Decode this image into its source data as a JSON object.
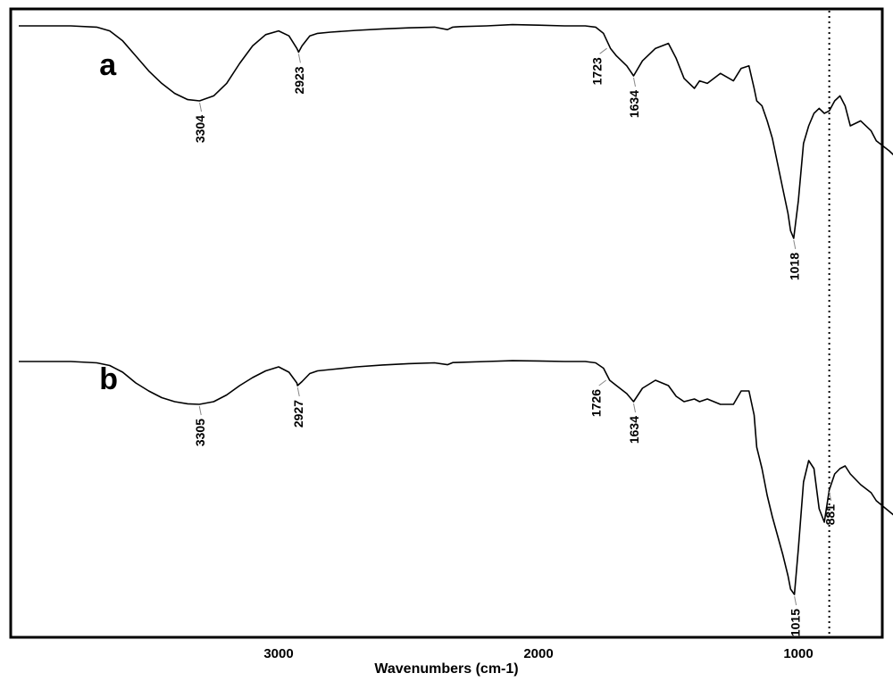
{
  "chart_data": {
    "type": "line",
    "title": "",
    "xlabel": "Wavenumbers (cm-1)",
    "ylabel": "",
    "x_ticks": [
      "3000",
      "2000",
      "1000"
    ],
    "x_range": [
      4000,
      600
    ],
    "x_reversed": true,
    "grid": false,
    "marker_line": 881,
    "series": [
      {
        "name": "a",
        "x": [
          4000,
          3900,
          3800,
          3700,
          3650,
          3600,
          3550,
          3500,
          3450,
          3400,
          3350,
          3304,
          3250,
          3200,
          3150,
          3100,
          3050,
          3000,
          2960,
          2930,
          2923,
          2910,
          2880,
          2850,
          2800,
          2700,
          2600,
          2500,
          2400,
          2350,
          2330,
          2300,
          2200,
          2100,
          2000,
          1900,
          1820,
          1780,
          1750,
          1723,
          1700,
          1660,
          1634,
          1600,
          1550,
          1500,
          1470,
          1440,
          1400,
          1380,
          1350,
          1300,
          1250,
          1220,
          1190,
          1170,
          1160,
          1140,
          1120,
          1100,
          1080,
          1060,
          1040,
          1030,
          1018,
          1000,
          980,
          960,
          940,
          920,
          900,
          881,
          860,
          840,
          820,
          800,
          760,
          720,
          700,
          650,
          600
        ],
        "y": [
          0,
          0,
          0,
          0.5,
          2,
          6,
          12,
          18,
          23,
          27,
          29.5,
          30,
          28,
          23,
          15,
          8,
          3.5,
          2,
          4,
          9,
          10.5,
          8,
          4,
          3,
          2.5,
          1.8,
          1.2,
          0.8,
          0.5,
          1.5,
          0.5,
          0.3,
          0,
          -0.5,
          -0.3,
          0,
          0,
          0.5,
          3,
          9,
          12,
          16,
          20,
          14,
          9,
          7,
          13,
          21,
          25,
          22,
          23,
          19,
          22,
          17,
          16,
          25,
          30,
          32,
          38,
          45,
          55,
          65,
          75,
          82,
          85,
          70,
          47,
          40,
          35,
          33,
          35,
          34,
          30,
          28,
          32,
          40,
          38,
          42,
          46,
          50,
          55
        ],
        "peak_labels": [
          {
            "x": 3304,
            "label": "3304"
          },
          {
            "x": 2923,
            "label": "2923"
          },
          {
            "x": 1723,
            "label": "1723"
          },
          {
            "x": 1634,
            "label": "1634"
          },
          {
            "x": 1018,
            "label": "1018"
          }
        ]
      },
      {
        "name": "b",
        "x": [
          4000,
          3900,
          3800,
          3700,
          3650,
          3600,
          3550,
          3500,
          3450,
          3400,
          3350,
          3305,
          3250,
          3200,
          3150,
          3100,
          3050,
          3000,
          2960,
          2930,
          2927,
          2910,
          2880,
          2850,
          2800,
          2700,
          2600,
          2500,
          2400,
          2350,
          2330,
          2300,
          2200,
          2100,
          2000,
          1900,
          1820,
          1780,
          1750,
          1726,
          1700,
          1660,
          1634,
          1600,
          1550,
          1500,
          1470,
          1440,
          1400,
          1380,
          1350,
          1300,
          1250,
          1220,
          1190,
          1170,
          1160,
          1140,
          1120,
          1100,
          1080,
          1060,
          1040,
          1030,
          1015,
          1000,
          980,
          960,
          940,
          920,
          900,
          881,
          860,
          840,
          820,
          800,
          760,
          720,
          700,
          650,
          600
        ],
        "y": [
          0,
          0,
          0,
          0.5,
          1.5,
          4,
          8,
          11,
          13.5,
          15,
          15.8,
          16,
          15,
          12.5,
          9,
          6,
          3.5,
          2,
          4,
          8,
          9,
          7.5,
          4.5,
          3.5,
          3,
          2,
          1.3,
          0.8,
          0.5,
          1.2,
          0.4,
          0.3,
          0,
          -0.3,
          -0.2,
          0,
          0,
          0.5,
          2.5,
          7,
          9,
          12,
          15,
          10,
          7,
          9,
          13,
          15,
          14,
          15,
          14,
          16,
          16,
          11,
          11,
          20,
          32,
          40,
          50,
          58,
          65,
          72,
          80,
          85,
          87,
          70,
          45,
          37,
          40,
          55,
          60,
          48,
          42,
          40,
          39,
          42,
          46,
          49,
          52,
          56,
          60
        ],
        "peak_labels": [
          {
            "x": 3305,
            "label": "3305"
          },
          {
            "x": 2927,
            "label": "2927"
          },
          {
            "x": 1726,
            "label": "1726"
          },
          {
            "x": 1634,
            "label": "1634"
          },
          {
            "x": 1015,
            "label": "1015"
          },
          {
            "x": 881,
            "label": "881"
          }
        ]
      }
    ]
  }
}
